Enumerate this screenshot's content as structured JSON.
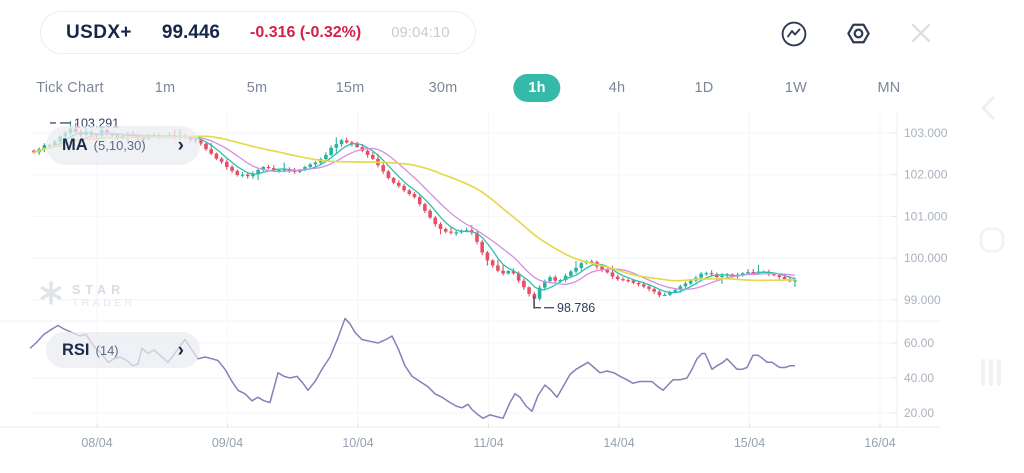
{
  "header": {
    "symbol": "USDX+",
    "price": "99.446",
    "change": "-0.316 (-0.32%)",
    "time": "09:04:10"
  },
  "icons": {
    "chevron_right": "›",
    "indicator_icon": "trend-line-in-circle",
    "settings_icon": "hexagon-nut",
    "close_icon": "x-cross",
    "edge_collapse_icon": "chevron-left",
    "edge_square_icon": "rounded-square",
    "edge_grip_icon": "three-vertical-bars"
  },
  "timeframes": {
    "selected": "1h",
    "items": [
      {
        "label": "Tick Chart",
        "selected": false
      },
      {
        "label": "1m",
        "selected": false
      },
      {
        "label": "5m",
        "selected": false
      },
      {
        "label": "15m",
        "selected": false
      },
      {
        "label": "30m",
        "selected": false
      },
      {
        "label": "1h",
        "selected": true
      },
      {
        "label": "4h",
        "selected": false
      },
      {
        "label": "1D",
        "selected": false
      },
      {
        "label": "1W",
        "selected": false
      },
      {
        "label": "MN",
        "selected": false
      }
    ]
  },
  "indicators": {
    "ma": {
      "name": "MA",
      "params": "(5,10,30)"
    },
    "rsi": {
      "name": "RSI",
      "params": "(14)"
    }
  },
  "watermark": {
    "line1": "STAR",
    "line2": "TRADER"
  },
  "chart_data": {
    "type": "candlestick",
    "symbol": "USDX+",
    "timeframe": "1h",
    "panes": [
      "price-with-ma",
      "rsi"
    ],
    "grid": true,
    "high_label": "103.291",
    "low_label": "98.786",
    "session_high": 103.291,
    "session_low": 98.786,
    "last_price": 99.446,
    "price_axis": {
      "ticks": [
        "103.000",
        "102.000",
        "101.000",
        "100.000",
        "99.000"
      ],
      "tick_values": [
        103,
        102,
        101,
        100,
        99
      ],
      "range": [
        98.5,
        103.55
      ]
    },
    "rsi_axis": {
      "ticks": [
        "60.00",
        "40.00",
        "20.00"
      ],
      "tick_values": [
        60,
        40,
        20
      ],
      "range": [
        12,
        70
      ]
    },
    "dates": [
      "08/04",
      "09/04",
      "10/04",
      "11/04",
      "14/04",
      "15/04",
      "16/04"
    ],
    "ma_windows": [
      5,
      10,
      30
    ],
    "colors": {
      "up": "#26b3a2",
      "down": "#e65064",
      "ma_fast": "#2cc0ad",
      "ma_mid": "#d48fe0",
      "ma_slow": "#e6d84f",
      "rsi": "#8d7cba",
      "accent": "#35b9a9",
      "navy": "#16284a",
      "neg_text": "#d6204c",
      "grid": "#f4f6f8",
      "axis_text": "#a9b2bf"
    },
    "price_anchors": [
      [
        34,
        102.55
      ],
      [
        42,
        102.68
      ],
      [
        50,
        102.72
      ],
      [
        58,
        102.85
      ],
      [
        64,
        103.0
      ],
      [
        70,
        103.12
      ],
      [
        78,
        102.95
      ],
      [
        86,
        103.02
      ],
      [
        94,
        102.9
      ],
      [
        102,
        103.05
      ],
      [
        110,
        102.95
      ],
      [
        118,
        102.88
      ],
      [
        126,
        103.0
      ],
      [
        134,
        102.92
      ],
      [
        142,
        102.86
      ],
      [
        150,
        102.95
      ],
      [
        158,
        102.9
      ],
      [
        166,
        102.93
      ],
      [
        174,
        102.88
      ],
      [
        182,
        102.92
      ],
      [
        190,
        102.85
      ],
      [
        198,
        102.8
      ],
      [
        206,
        102.6
      ],
      [
        214,
        102.45
      ],
      [
        222,
        102.3
      ],
      [
        230,
        102.12
      ],
      [
        238,
        102.0
      ],
      [
        246,
        101.95
      ],
      [
        254,
        102.05
      ],
      [
        262,
        102.2
      ],
      [
        270,
        102.12
      ],
      [
        278,
        102.08
      ],
      [
        286,
        102.12
      ],
      [
        294,
        102.06
      ],
      [
        302,
        102.15
      ],
      [
        310,
        102.22
      ],
      [
        318,
        102.3
      ],
      [
        326,
        102.5
      ],
      [
        334,
        102.7
      ],
      [
        342,
        102.82
      ],
      [
        350,
        102.78
      ],
      [
        358,
        102.65
      ],
      [
        366,
        102.5
      ],
      [
        374,
        102.35
      ],
      [
        382,
        102.1
      ],
      [
        390,
        101.9
      ],
      [
        398,
        101.75
      ],
      [
        406,
        101.6
      ],
      [
        414,
        101.45
      ],
      [
        422,
        101.2
      ],
      [
        430,
        100.95
      ],
      [
        438,
        100.75
      ],
      [
        446,
        100.62
      ],
      [
        454,
        100.58
      ],
      [
        462,
        100.65
      ],
      [
        470,
        100.7
      ],
      [
        478,
        100.35
      ],
      [
        486,
        99.95
      ],
      [
        494,
        99.78
      ],
      [
        502,
        99.62
      ],
      [
        510,
        99.72
      ],
      [
        518,
        99.5
      ],
      [
        526,
        99.25
      ],
      [
        534,
        99.0
      ],
      [
        542,
        99.4
      ],
      [
        550,
        99.55
      ],
      [
        558,
        99.42
      ],
      [
        566,
        99.6
      ],
      [
        574,
        99.72
      ],
      [
        582,
        99.88
      ],
      [
        590,
        99.92
      ],
      [
        598,
        99.8
      ],
      [
        606,
        99.65
      ],
      [
        614,
        99.55
      ],
      [
        622,
        99.48
      ],
      [
        630,
        99.45
      ],
      [
        638,
        99.35
      ],
      [
        646,
        99.3
      ],
      [
        654,
        99.2
      ],
      [
        662,
        99.05
      ],
      [
        670,
        99.18
      ],
      [
        678,
        99.3
      ],
      [
        686,
        99.38
      ],
      [
        694,
        99.5
      ],
      [
        702,
        99.65
      ],
      [
        710,
        99.62
      ],
      [
        718,
        99.55
      ],
      [
        726,
        99.6
      ],
      [
        734,
        99.55
      ],
      [
        742,
        99.62
      ],
      [
        750,
        99.66
      ],
      [
        758,
        99.7
      ],
      [
        766,
        99.64
      ],
      [
        774,
        99.58
      ],
      [
        782,
        99.5
      ],
      [
        790,
        99.46
      ],
      [
        795,
        99.45
      ]
    ],
    "rsi_series": [
      [
        30,
        57
      ],
      [
        36,
        60
      ],
      [
        44,
        65
      ],
      [
        52,
        68
      ],
      [
        58,
        70
      ],
      [
        64,
        68
      ],
      [
        72,
        66
      ],
      [
        80,
        64
      ],
      [
        86,
        65
      ],
      [
        94,
        58
      ],
      [
        100,
        55
      ],
      [
        108,
        49
      ],
      [
        114,
        51
      ],
      [
        120,
        52
      ],
      [
        127,
        50
      ],
      [
        133,
        47
      ],
      [
        138,
        48
      ],
      [
        142,
        57
      ],
      [
        148,
        54
      ],
      [
        154,
        56
      ],
      [
        160,
        53
      ],
      [
        168,
        49
      ],
      [
        176,
        55
      ],
      [
        185,
        62
      ],
      [
        192,
        56
      ],
      [
        198,
        51
      ],
      [
        205,
        52
      ],
      [
        212,
        51
      ],
      [
        218,
        50
      ],
      [
        225,
        45
      ],
      [
        232,
        38
      ],
      [
        238,
        33
      ],
      [
        245,
        31
      ],
      [
        252,
        27
      ],
      [
        258,
        29
      ],
      [
        264,
        27
      ],
      [
        270,
        26
      ],
      [
        278,
        43
      ],
      [
        284,
        41
      ],
      [
        290,
        40
      ],
      [
        297,
        41
      ],
      [
        303,
        37
      ],
      [
        308,
        33
      ],
      [
        315,
        38
      ],
      [
        322,
        45
      ],
      [
        330,
        52
      ],
      [
        338,
        63
      ],
      [
        345,
        74
      ],
      [
        350,
        71
      ],
      [
        355,
        66
      ],
      [
        362,
        62
      ],
      [
        370,
        61
      ],
      [
        378,
        60
      ],
      [
        386,
        62
      ],
      [
        392,
        64
      ],
      [
        398,
        57
      ],
      [
        405,
        47
      ],
      [
        412,
        41
      ],
      [
        420,
        38
      ],
      [
        428,
        35
      ],
      [
        435,
        31
      ],
      [
        442,
        29
      ],
      [
        450,
        26
      ],
      [
        456,
        24
      ],
      [
        462,
        23
      ],
      [
        468,
        25
      ],
      [
        472,
        22
      ],
      [
        478,
        19
      ],
      [
        483,
        17
      ],
      [
        490,
        19
      ],
      [
        496,
        18
      ],
      [
        503,
        17
      ],
      [
        510,
        26
      ],
      [
        515,
        31
      ],
      [
        520,
        29
      ],
      [
        526,
        24
      ],
      [
        532,
        21
      ],
      [
        538,
        30
      ],
      [
        545,
        36
      ],
      [
        551,
        33
      ],
      [
        557,
        29
      ],
      [
        564,
        36
      ],
      [
        570,
        42
      ],
      [
        576,
        45
      ],
      [
        582,
        47
      ],
      [
        588,
        49
      ],
      [
        594,
        46
      ],
      [
        600,
        43
      ],
      [
        607,
        44
      ],
      [
        614,
        43
      ],
      [
        620,
        41
      ],
      [
        627,
        39
      ],
      [
        633,
        37
      ],
      [
        640,
        38
      ],
      [
        646,
        38
      ],
      [
        652,
        38
      ],
      [
        658,
        35
      ],
      [
        663,
        33
      ],
      [
        668,
        36
      ],
      [
        673,
        39
      ],
      [
        680,
        39
      ],
      [
        687,
        40
      ],
      [
        692,
        45
      ],
      [
        697,
        51
      ],
      [
        702,
        54
      ],
      [
        705,
        54
      ],
      [
        709,
        49
      ],
      [
        712,
        45
      ],
      [
        717,
        47
      ],
      [
        723,
        49
      ],
      [
        727,
        51
      ],
      [
        732,
        48
      ],
      [
        737,
        45
      ],
      [
        742,
        45
      ],
      [
        747,
        46
      ],
      [
        753,
        53
      ],
      [
        758,
        53
      ],
      [
        763,
        51
      ],
      [
        767,
        49
      ],
      [
        772,
        49
      ],
      [
        777,
        47
      ],
      [
        780,
        46
      ],
      [
        785,
        46
      ],
      [
        790,
        47
      ],
      [
        795,
        47
      ]
    ]
  }
}
